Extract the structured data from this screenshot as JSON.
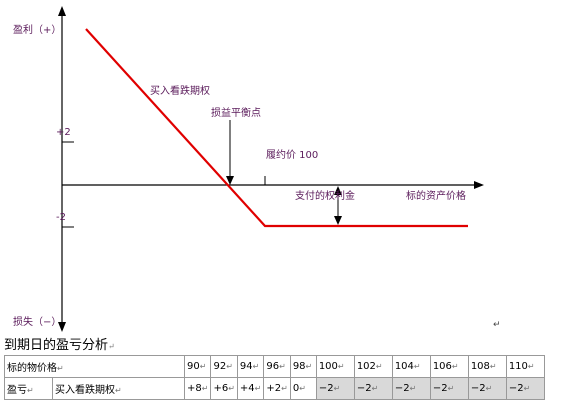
{
  "diagram": {
    "y_top_label": "盈利（+）",
    "y_bottom_label": "损失（−）",
    "y_tick_pos": "+2",
    "y_tick_neg": "-2",
    "x_axis_label": "标的资产价格",
    "line_label": "买入看跌期权",
    "breakeven_label": "损益平衡点",
    "strike_label": "履约价 100",
    "premium_label": "支付的权利金",
    "line_color": "#e00000",
    "label_color": "#5a1a5a"
  },
  "heading": "到期日的盈亏分析",
  "table": {
    "header_label": "标的物价格",
    "prices": [
      "90",
      "92",
      "94",
      "96",
      "98",
      "100",
      "102",
      "104",
      "106",
      "108",
      "110"
    ],
    "row_label": "盈亏",
    "row_sublabel": "买入看跌期权",
    "values": [
      "+8",
      "+6",
      "+4",
      "+2",
      "0",
      "−2",
      "−2",
      "−2",
      "−2",
      "−2",
      "−2"
    ],
    "return_mark": "↵"
  }
}
